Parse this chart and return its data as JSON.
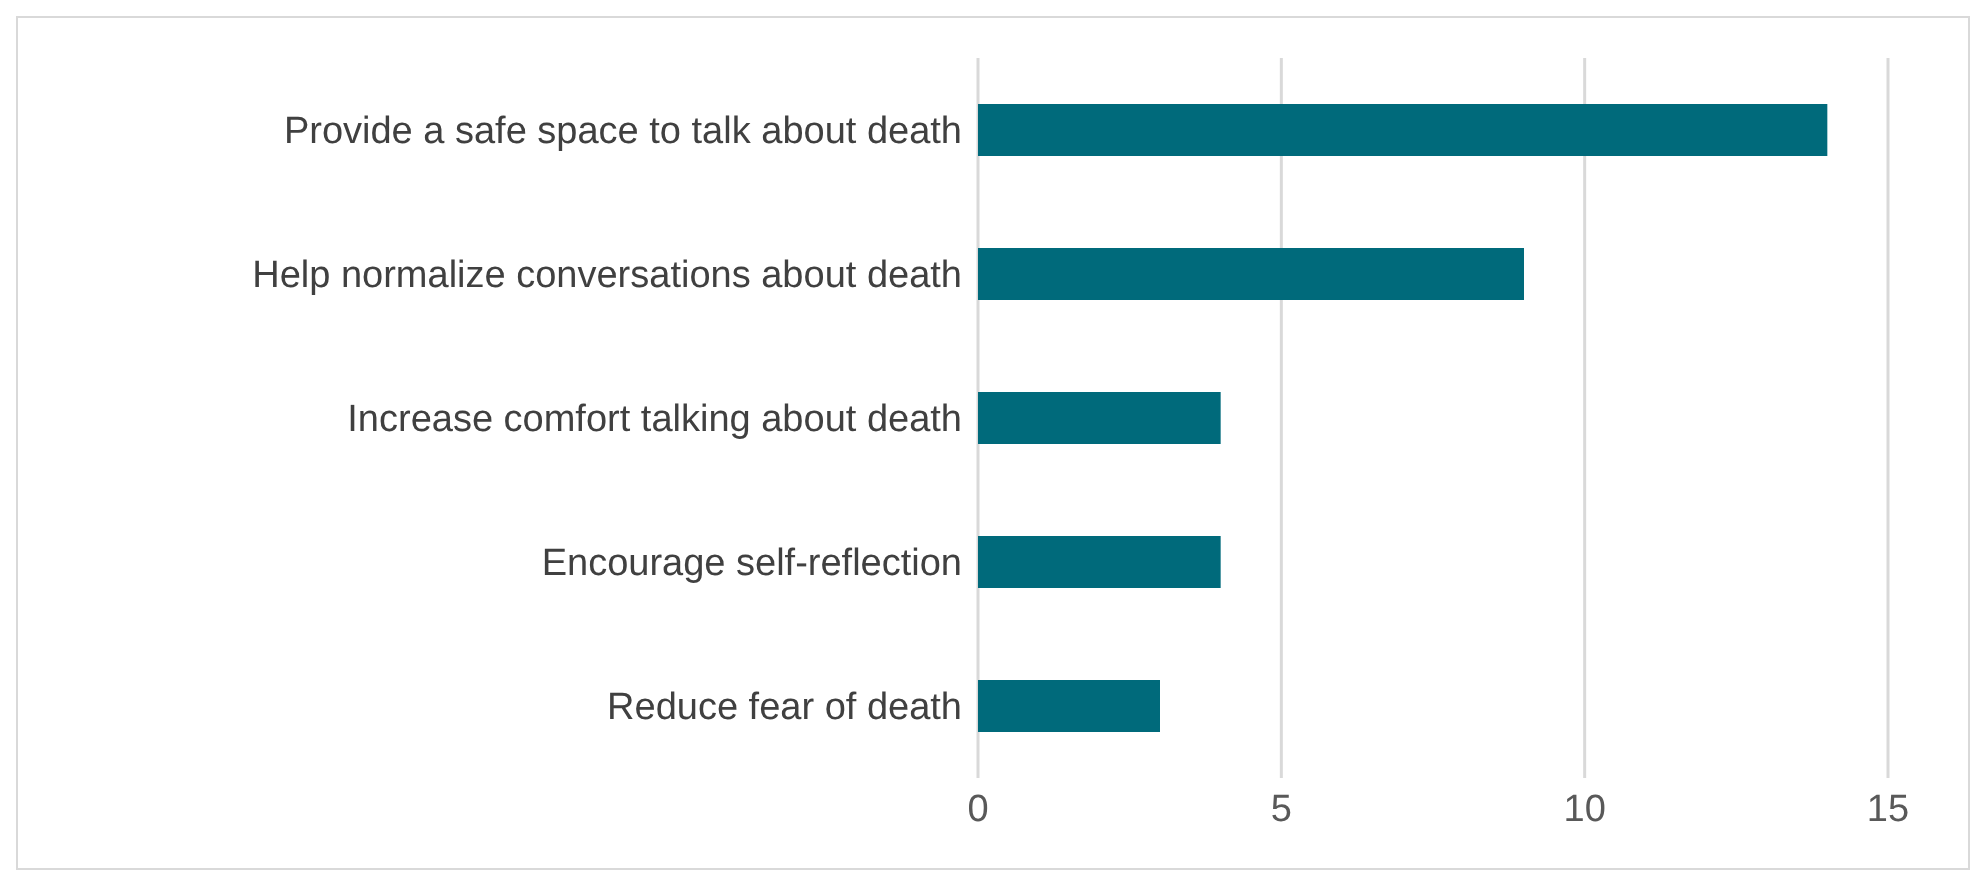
{
  "chart_data": {
    "type": "bar",
    "orientation": "horizontal",
    "categories": [
      "Provide a safe space to talk about death",
      "Help normalize conversations about death",
      "Increase comfort talking about death",
      "Encourage self-reflection",
      "Reduce fear of death"
    ],
    "values": [
      14,
      9,
      4,
      4,
      3
    ],
    "color": "#006a7b",
    "xlim": [
      0,
      15
    ],
    "xticks": [
      0,
      5,
      10,
      15
    ],
    "grid": "x"
  }
}
